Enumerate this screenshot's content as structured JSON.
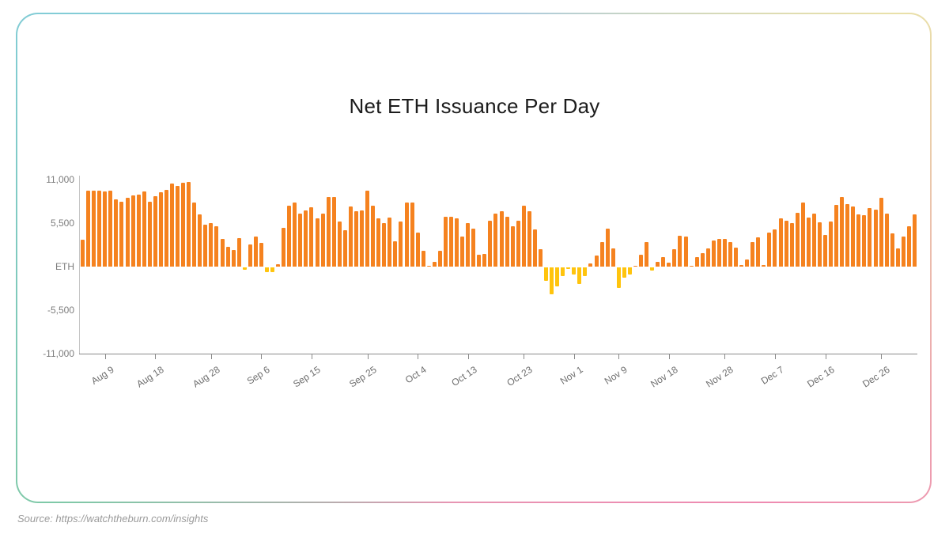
{
  "page": {
    "source_text": "Source: https://watchtheburn.com/insights"
  },
  "card": {
    "border_gradient_colors": [
      "#9ec6e8",
      "#e9e0a9",
      "#ee8bb1",
      "#e795b3",
      "#7fc9a8",
      "#82ccd6"
    ]
  },
  "chart_data": {
    "type": "bar",
    "title": "Net ETH Issuance Per Day",
    "xlabel": "",
    "ylabel": "ETH",
    "ylim": [
      -11000,
      11000
    ],
    "grid": false,
    "legend": "none",
    "positive_color": "#F5821F",
    "negative_color": "#FFC40D",
    "axis_note": "one bar per day, Aug 5 through Jan 1",
    "y_ticks": [
      {
        "value": 11000,
        "label": "11,000"
      },
      {
        "value": 5500,
        "label": "5,500"
      },
      {
        "value": 0,
        "label": "ETH"
      },
      {
        "value": -5500,
        "label": "-5,500"
      },
      {
        "value": -11000,
        "label": "-11,000"
      }
    ],
    "x_ticks": [
      {
        "label": "Aug 9",
        "index": 4
      },
      {
        "label": "Aug 18",
        "index": 13
      },
      {
        "label": "Aug 28",
        "index": 23
      },
      {
        "label": "Sep 6",
        "index": 32
      },
      {
        "label": "Sep 15",
        "index": 41
      },
      {
        "label": "Sep 25",
        "index": 51
      },
      {
        "label": "Oct 4",
        "index": 60
      },
      {
        "label": "Oct 13",
        "index": 69
      },
      {
        "label": "Oct 23",
        "index": 79
      },
      {
        "label": "Nov 1",
        "index": 88
      },
      {
        "label": "Nov 9",
        "index": 96
      },
      {
        "label": "Nov 18",
        "index": 105
      },
      {
        "label": "Nov 28",
        "index": 115
      },
      {
        "label": "Dec 7",
        "index": 124
      },
      {
        "label": "Dec 16",
        "index": 133
      },
      {
        "label": "Dec 26",
        "index": 143
      }
    ],
    "values": [
      3400,
      9600,
      9600,
      9600,
      9500,
      9600,
      8500,
      8200,
      8700,
      9000,
      9100,
      9500,
      8200,
      8900,
      9400,
      9700,
      10500,
      10200,
      10600,
      10700,
      8100,
      6600,
      5300,
      5500,
      5100,
      3500,
      2500,
      2100,
      3600,
      -300,
      2800,
      3800,
      3000,
      -600,
      -600,
      300,
      4900,
      7700,
      8100,
      6700,
      7100,
      7500,
      6100,
      6700,
      8800,
      8800,
      5700,
      4600,
      7600,
      7000,
      7100,
      9600,
      7700,
      6100,
      5500,
      6200,
      3200,
      5700,
      8100,
      8100,
      4300,
      2000,
      150,
      600,
      2000,
      6300,
      6300,
      6100,
      3800,
      5500,
      4800,
      1500,
      1600,
      5800,
      6700,
      7000,
      6300,
      5100,
      5800,
      7700,
      7000,
      4700,
      2200,
      -1700,
      -3400,
      -2400,
      -1100,
      -200,
      -900,
      -2100,
      -1100,
      400,
      1400,
      3100,
      4800,
      2300,
      -2600,
      -1300,
      -900,
      150,
      1500,
      3100,
      -400,
      600,
      1200,
      500,
      2200,
      3900,
      3800,
      150,
      1200,
      1700,
      2300,
      3300,
      3500,
      3500,
      3100,
      2400,
      250,
      900,
      3100,
      3700,
      250,
      4300,
      4700,
      6100,
      5800,
      5500,
      6800,
      8100,
      6200,
      6700,
      5600,
      4000,
      5700,
      7800,
      8800,
      7900,
      7600,
      6600,
      6500,
      7400,
      7200,
      8700,
      6700,
      4200,
      2300,
      3800,
      5100,
      6600
    ]
  }
}
